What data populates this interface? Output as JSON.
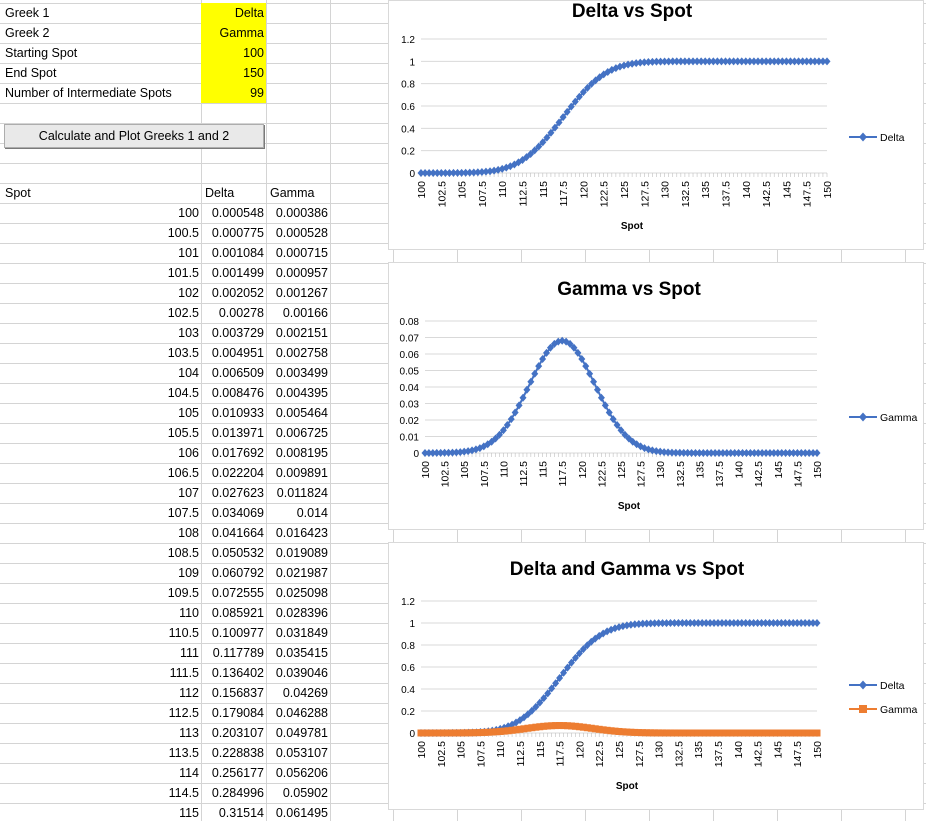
{
  "inputs": [
    {
      "label": "Greek 1",
      "value": "Delta"
    },
    {
      "label": "Greek 2",
      "value": "Gamma"
    },
    {
      "label": "Starting Spot",
      "value": "100"
    },
    {
      "label": "End Spot",
      "value": "150"
    },
    {
      "label": "Number of Intermediate Spots",
      "value": "99"
    }
  ],
  "button_label": "Calculate and Plot Greeks 1 and 2",
  "table": {
    "headers": [
      "Spot",
      "Delta",
      "Gamma"
    ],
    "rows": [
      [
        "100",
        "0.000548",
        "0.000386"
      ],
      [
        "100.5",
        "0.000775",
        "0.000528"
      ],
      [
        "101",
        "0.001084",
        "0.000715"
      ],
      [
        "101.5",
        "0.001499",
        "0.000957"
      ],
      [
        "102",
        "0.002052",
        "0.001267"
      ],
      [
        "102.5",
        "0.00278",
        "0.00166"
      ],
      [
        "103",
        "0.003729",
        "0.002151"
      ],
      [
        "103.5",
        "0.004951",
        "0.002758"
      ],
      [
        "104",
        "0.006509",
        "0.003499"
      ],
      [
        "104.5",
        "0.008476",
        "0.004395"
      ],
      [
        "105",
        "0.010933",
        "0.005464"
      ],
      [
        "105.5",
        "0.013971",
        "0.006725"
      ],
      [
        "106",
        "0.017692",
        "0.008195"
      ],
      [
        "106.5",
        "0.022204",
        "0.009891"
      ],
      [
        "107",
        "0.027623",
        "0.011824"
      ],
      [
        "107.5",
        "0.034069",
        "0.014"
      ],
      [
        "108",
        "0.041664",
        "0.016423"
      ],
      [
        "108.5",
        "0.050532",
        "0.019089"
      ],
      [
        "109",
        "0.060792",
        "0.021987"
      ],
      [
        "109.5",
        "0.072555",
        "0.025098"
      ],
      [
        "110",
        "0.085921",
        "0.028396"
      ],
      [
        "110.5",
        "0.100977",
        "0.031849"
      ],
      [
        "111",
        "0.117789",
        "0.035415"
      ],
      [
        "111.5",
        "0.136402",
        "0.039046"
      ],
      [
        "112",
        "0.156837",
        "0.04269"
      ],
      [
        "112.5",
        "0.179084",
        "0.046288"
      ],
      [
        "113",
        "0.203107",
        "0.049781"
      ],
      [
        "113.5",
        "0.228838",
        "0.053107"
      ],
      [
        "114",
        "0.256177",
        "0.056206"
      ],
      [
        "114.5",
        "0.284996",
        "0.05902"
      ],
      [
        "115",
        "0.31514",
        "0.061495"
      ]
    ]
  },
  "colors": {
    "delta": "#4472c4",
    "gamma": "#ed7d31",
    "input_highlight": "#ffff00"
  },
  "chart_data": [
    {
      "type": "line",
      "title": "Delta vs Spot",
      "xlabel": "Spot",
      "ylim": [
        0,
        1.2
      ],
      "yticks": [
        "0",
        "0.2",
        "0.4",
        "0.6",
        "0.8",
        "1",
        "1.2"
      ],
      "xticks": [
        "100",
        "102.5",
        "105",
        "107.5",
        "110",
        "112.5",
        "115",
        "117.5",
        "120",
        "122.5",
        "125",
        "127.5",
        "130",
        "132.5",
        "135",
        "137.5",
        "140",
        "142.5",
        "145",
        "147.5",
        "150"
      ],
      "x_range": [
        100,
        150,
        0.5
      ],
      "series": [
        {
          "name": "Delta",
          "color": "#4472c4",
          "marker": "diamond",
          "mean": 117.5,
          "sd": 4.2
        }
      ],
      "legend": "right"
    },
    {
      "type": "line",
      "title": "Gamma vs Spot",
      "xlabel": "Spot",
      "ylim": [
        0,
        0.08
      ],
      "yticks": [
        "0",
        "0.01",
        "0.02",
        "0.03",
        "0.04",
        "0.05",
        "0.06",
        "0.07",
        "0.08"
      ],
      "xticks": [
        "100",
        "102.5",
        "105",
        "107.5",
        "110",
        "112.5",
        "115",
        "117.5",
        "120",
        "122.5",
        "125",
        "127.5",
        "130",
        "132.5",
        "135",
        "137.5",
        "140",
        "142.5",
        "145",
        "147.5",
        "150"
      ],
      "x_range": [
        100,
        150,
        0.5
      ],
      "series": [
        {
          "name": "Gamma",
          "color": "#4472c4",
          "marker": "diamond",
          "mean": 117.5,
          "sd": 4.2,
          "peak": 0.068
        }
      ],
      "legend": "right"
    },
    {
      "type": "line",
      "title": "Delta and Gamma vs Spot",
      "xlabel": "Spot",
      "ylim": [
        0,
        1.2
      ],
      "yticks": [
        "0",
        "0.2",
        "0.4",
        "0.6",
        "0.8",
        "1",
        "1.2"
      ],
      "xticks": [
        "100",
        "102.5",
        "105",
        "107.5",
        "110",
        "112.5",
        "115",
        "117.5",
        "120",
        "122.5",
        "125",
        "127.5",
        "130",
        "132.5",
        "135",
        "137.5",
        "140",
        "142.5",
        "145",
        "147.5",
        "150"
      ],
      "x_range": [
        100,
        150,
        0.5
      ],
      "series": [
        {
          "name": "Delta",
          "color": "#4472c4",
          "marker": "diamond",
          "mean": 117.5,
          "sd": 4.2
        },
        {
          "name": "Gamma",
          "color": "#ed7d31",
          "marker": "square",
          "mean": 117.5,
          "sd": 4.2,
          "peak": 0.068
        }
      ],
      "legend": "right"
    }
  ]
}
